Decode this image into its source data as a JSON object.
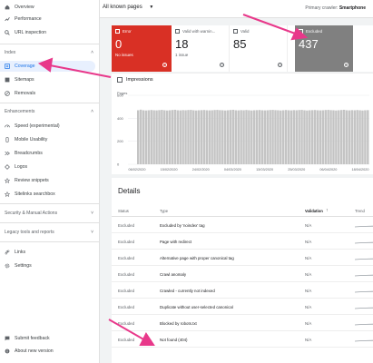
{
  "sidebar": {
    "top_items": [
      {
        "label": "Overview",
        "icon": "home-icon"
      },
      {
        "label": "Performance",
        "icon": "trending-up-icon"
      },
      {
        "label": "URL inspection",
        "icon": "search-icon"
      }
    ],
    "index_label": "Index",
    "index_items": [
      {
        "label": "Coverage",
        "icon": "coverage-icon",
        "active": true
      },
      {
        "label": "Sitemaps",
        "icon": "sitemap-icon"
      },
      {
        "label": "Removals",
        "icon": "removals-icon"
      }
    ],
    "enh_label": "Enhancements",
    "enh_items": [
      {
        "label": "Speed (experimental)",
        "icon": "speed-icon"
      },
      {
        "label": "Mobile Usability",
        "icon": "phone-icon"
      },
      {
        "label": "Breadcrumbs",
        "icon": "breadcrumb-icon"
      },
      {
        "label": "Logos",
        "icon": "logo-icon"
      },
      {
        "label": "Review snippets",
        "icon": "review-icon"
      },
      {
        "label": "Sitelinks searchbox",
        "icon": "searchbox-icon"
      }
    ],
    "security_label": "Security & Manual Actions",
    "legacy_label": "Legacy tools and reports",
    "bottom_items": [
      {
        "label": "Links",
        "icon": "links-icon"
      },
      {
        "label": "Settings",
        "icon": "settings-icon"
      }
    ],
    "footer_items": [
      {
        "label": "Submit feedback",
        "icon": "feedback-icon"
      },
      {
        "label": "About new version",
        "icon": "info-icon"
      }
    ]
  },
  "topbar": {
    "filter": "All known pages",
    "crawler_label": "Primary crawler:",
    "crawler_value": "Smartphone"
  },
  "cards": {
    "error": {
      "label": "Error",
      "value": "0",
      "sub": "No issues"
    },
    "warn": {
      "label": "Valid with warnin...",
      "value": "18",
      "sub": "1 issue"
    },
    "valid": {
      "label": "Valid",
      "value": "85"
    },
    "excluded": {
      "label": "Excluded",
      "value": "437"
    }
  },
  "chart_data": {
    "type": "bar",
    "title": "",
    "ylabel": "Pages",
    "ylim": [
      0,
      600
    ],
    "yticks": [
      "600",
      "400",
      "200",
      "0"
    ],
    "xticks": [
      "06/02/2020",
      "15/02/2020",
      "24/02/2020",
      "04/03/2020",
      "13/03/2020",
      "25/03/2020",
      "06/04/2020",
      "18/04/2020"
    ],
    "bar_color": "#c4c4c4",
    "values": [
      470,
      475,
      470,
      468,
      470,
      472,
      470,
      469,
      471,
      473,
      470,
      468,
      470,
      472,
      474,
      470,
      469,
      471,
      470,
      472,
      473,
      470,
      468,
      470,
      471,
      472,
      470,
      469,
      470,
      472,
      473,
      471,
      470,
      468,
      470,
      472,
      474,
      470,
      469,
      471,
      470,
      472,
      470,
      468,
      470,
      471,
      472,
      470,
      469,
      470,
      472,
      473,
      471,
      470,
      468,
      470,
      472,
      470,
      469,
      471,
      470,
      472,
      473,
      470,
      468,
      470,
      471,
      472,
      470,
      469,
      470,
      472,
      473,
      471,
      470,
      468,
      470,
      472,
      474,
      470,
      469,
      471,
      470,
      472,
      470,
      468,
      470,
      471
    ]
  },
  "chart": {
    "impressions_label": "Impressions"
  },
  "details": {
    "title": "Details",
    "columns": {
      "status": "Status",
      "type": "Type",
      "validation": "Validation",
      "trend": "Trend"
    },
    "rows": [
      {
        "status": "Excluded",
        "type": "Excluded by 'noindex' tag",
        "validation": "N/A"
      },
      {
        "status": "Excluded",
        "type": "Page with redirect",
        "validation": "N/A"
      },
      {
        "status": "Excluded",
        "type": "Alternative page with proper canonical tag",
        "validation": "N/A"
      },
      {
        "status": "Excluded",
        "type": "Crawl anomaly",
        "validation": "N/A"
      },
      {
        "status": "Excluded",
        "type": "Crawled - currently not indexed",
        "validation": "N/A"
      },
      {
        "status": "Excluded",
        "type": "Duplicate without user-selected canonical",
        "validation": "N/A"
      },
      {
        "status": "Excluded",
        "type": "Blocked by robots.txt",
        "validation": "N/A"
      },
      {
        "status": "Excluded",
        "type": "Not found (404)",
        "validation": "N/A"
      }
    ]
  },
  "colors": {
    "arrow": "#e8388a",
    "error": "#d93025",
    "excluded": "#808080",
    "accent": "#1a73e8"
  }
}
